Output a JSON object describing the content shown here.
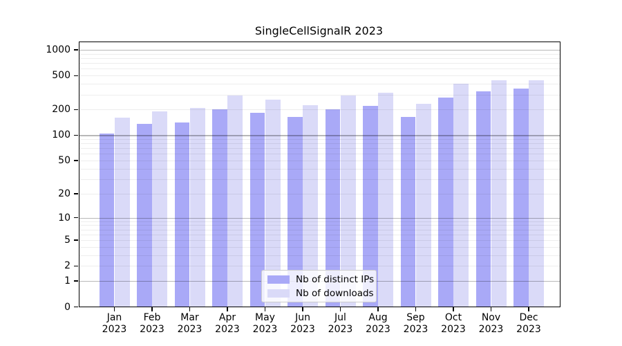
{
  "title": "SingleCellSignalR 2023",
  "chart_data": {
    "type": "bar",
    "title": "SingleCellSignalR 2023",
    "categories": [
      "Jan 2023",
      "Feb 2023",
      "Mar 2023",
      "Apr 2023",
      "May 2023",
      "Jun 2023",
      "Jul 2023",
      "Aug 2023",
      "Sep 2023",
      "Oct 2023",
      "Nov 2023",
      "Dec 2023"
    ],
    "months": [
      "Jan",
      "Feb",
      "Mar",
      "Apr",
      "May",
      "Jun",
      "Jul",
      "Aug",
      "Sep",
      "Oct",
      "Nov",
      "Dec"
    ],
    "year": "2023",
    "series": [
      {
        "name": "Nb of distinct IPs",
        "color": "#a9a9f7",
        "values": [
          105,
          135,
          140,
          200,
          185,
          165,
          200,
          220,
          165,
          275,
          330,
          350
        ]
      },
      {
        "name": "Nb of downloads",
        "color": "#dadaf8",
        "values": [
          160,
          190,
          210,
          295,
          260,
          225,
          290,
          315,
          235,
          405,
          445,
          440
        ]
      }
    ],
    "yscale": "log1p",
    "yticks": [
      0,
      1,
      2,
      5,
      10,
      20,
      50,
      100,
      200,
      500,
      1000
    ],
    "ytick_labels": [
      "0",
      "1",
      "2",
      "5",
      "10",
      "20",
      "50",
      "100",
      "200",
      "500",
      "1000"
    ],
    "ylim": [
      0,
      1250
    ],
    "xlabel": "",
    "ylabel": "",
    "grid": true,
    "legend_position": "bottom-center"
  },
  "colors": {
    "bar_dark": "#a9a9f7",
    "bar_light": "#dadaf8",
    "grid_major": "rgba(0,0,0,0.28)",
    "grid_minor": "rgba(0,0,0,0.07)",
    "spine": "#000000"
  }
}
